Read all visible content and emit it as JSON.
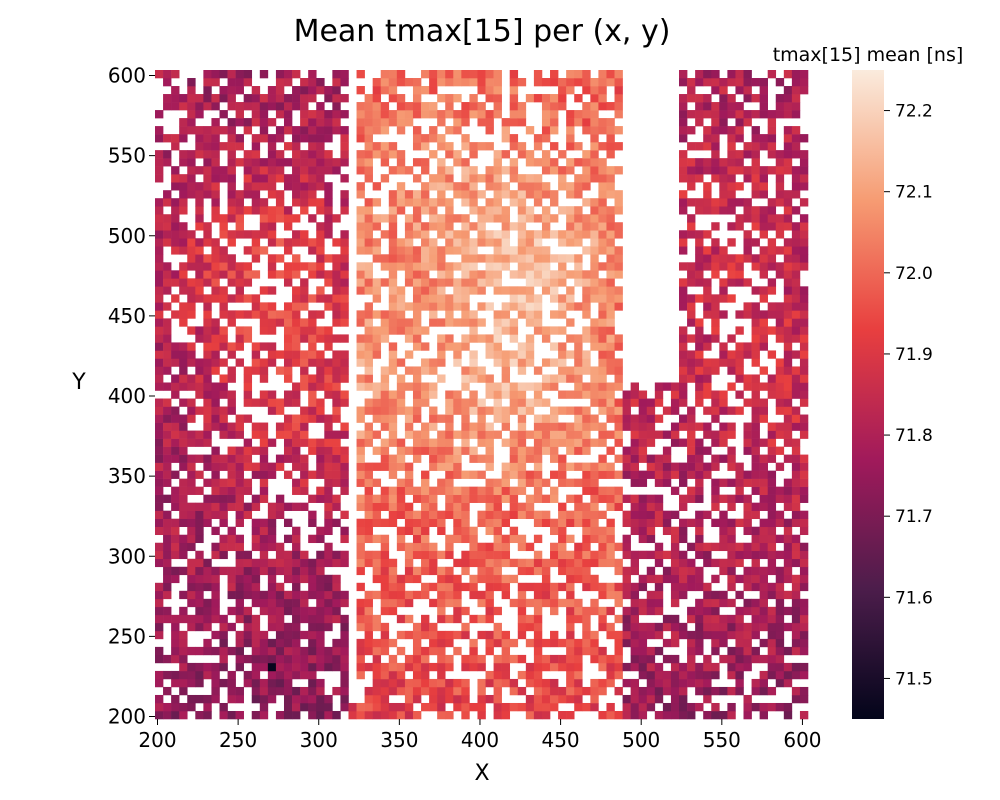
{
  "chart_data": {
    "type": "heatmap",
    "title": "Mean tmax[15] per (x, y)",
    "xlabel": "X",
    "ylabel": "Y",
    "xlim": [
      200,
      605
    ],
    "ylim": [
      200,
      605
    ],
    "x_ticks": [
      200,
      250,
      300,
      350,
      400,
      450,
      500,
      550,
      600
    ],
    "y_ticks": [
      200,
      250,
      300,
      350,
      400,
      450,
      500,
      550,
      600
    ],
    "bin_size": 5,
    "colorbar": {
      "label": "tmax[15] mean [ns]",
      "range": [
        71.45,
        72.25
      ],
      "ticks": [
        71.5,
        71.6,
        71.7,
        71.8,
        71.9,
        72.0,
        72.1,
        72.2
      ]
    },
    "colormap": [
      "#03051a",
      "#4c1d4b",
      "#a11a5b",
      "#e83f3f",
      "#f69c73",
      "#faebdd"
    ],
    "regions": [
      {
        "name": "left column",
        "x_range": [
          200,
          320
        ],
        "y_range": [
          200,
          605
        ],
        "typical_mean": 71.78
      },
      {
        "name": "center column",
        "x_range": [
          325,
          490
        ],
        "y_range": [
          200,
          605
        ],
        "typical_mean": 71.98
      },
      {
        "name": "right column",
        "x_range": [
          495,
          605
        ],
        "y_range": [
          200,
          605
        ],
        "typical_mean": 71.8
      },
      {
        "name": "central hot spot",
        "center": [
          415,
          410
        ],
        "typical_mean": 72.12
      },
      {
        "name": "upper hot spot",
        "center": [
          430,
          495
        ],
        "typical_mean": 72.1
      }
    ],
    "min_value_cell": {
      "x": 270,
      "y": 230,
      "value": 71.46
    },
    "gaps": [
      {
        "x_range": [
          320,
          325
        ],
        "y_range": [
          210,
          605
        ]
      },
      {
        "x_range": [
          490,
          525
        ],
        "y_range": [
          410,
          605
        ]
      }
    ]
  }
}
